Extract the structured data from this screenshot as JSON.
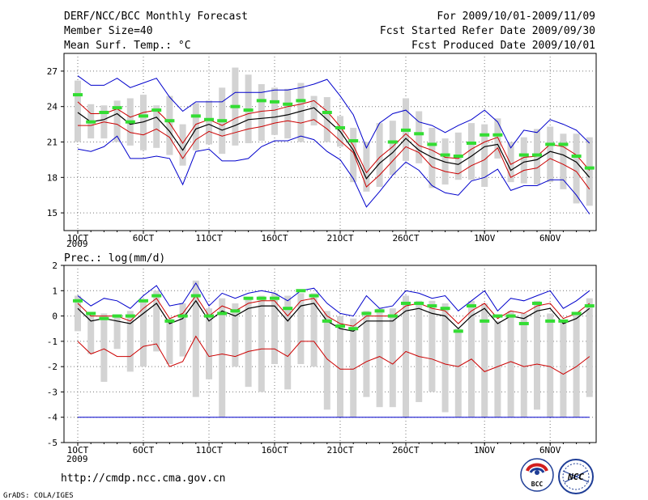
{
  "header": {
    "title": "DERF/NCC/BCC Monthly Forecast",
    "member_size": "Member Size=40",
    "variable": "Mean Surf. Temp.: °C",
    "period": "For 2009/10/01-2009/11/09",
    "fcst_started": "Fcst Started Refer Date 2009/09/30",
    "fcst_produced": "Fcst Produced Date 2009/10/01"
  },
  "precip_label": "Prec.: log(mm/d)",
  "year_label": "2009",
  "url": "http://cmdp.ncc.cma.gov.cn",
  "credit": "GrADS: COLA/IGES",
  "logos": {
    "left": "BCC",
    "right": "NCC"
  },
  "colors": {
    "mean": "#000000",
    "spread": "#cc0000",
    "envelope": "#0000cc",
    "obs": "#33dd33",
    "box": "#d3d3d3"
  },
  "chart_data": [
    {
      "type": "line",
      "title": "Mean Surf. Temp.: °C",
      "x": [
        1,
        2,
        3,
        4,
        5,
        6,
        7,
        8,
        9,
        10,
        11,
        12,
        13,
        14,
        15,
        16,
        17,
        18,
        19,
        20,
        21,
        22,
        23,
        24,
        25,
        26,
        27,
        28,
        29,
        30,
        31,
        32,
        33,
        34,
        35,
        36,
        37,
        38,
        39,
        40
      ],
      "x_ticks": [
        {
          "day": 1,
          "label": "1OCT"
        },
        {
          "day": 6,
          "label": "6OCT"
        },
        {
          "day": 11,
          "label": "11OCT"
        },
        {
          "day": 16,
          "label": "16OCT"
        },
        {
          "day": 21,
          "label": "21OCT"
        },
        {
          "day": 26,
          "label": "26OCT"
        },
        {
          "day": 32,
          "label": "1NOV"
        },
        {
          "day": 37,
          "label": "6NOV"
        }
      ],
      "ylim": [
        13.5,
        28.5
      ],
      "y_ticks": [
        15,
        18,
        21,
        24,
        27
      ],
      "series": [
        {
          "name": "max",
          "color": "#0000cc",
          "values": [
            26.6,
            25.8,
            25.8,
            26.4,
            25.6,
            26.0,
            26.4,
            24.8,
            23.6,
            24.4,
            24.4,
            24.4,
            25.2,
            25.2,
            25.2,
            25.4,
            25.4,
            25.6,
            25.9,
            26.3,
            24.9,
            23.3,
            20.5,
            22.6,
            23.4,
            23.7,
            22.7,
            22.4,
            21.8,
            22.4,
            22.9,
            23.7,
            22.7,
            20.5,
            22.0,
            21.8,
            22.9,
            22.5,
            22.0,
            20.9
          ]
        },
        {
          "name": "upper",
          "color": "#cc0000",
          "values": [
            24.4,
            23.4,
            23.4,
            23.8,
            23.1,
            23.5,
            23.7,
            22.6,
            20.9,
            22.5,
            22.9,
            22.4,
            23.0,
            23.4,
            23.6,
            23.7,
            24.0,
            24.2,
            24.5,
            23.6,
            22.3,
            20.7,
            18.4,
            19.7,
            20.6,
            21.7,
            20.7,
            20.3,
            19.7,
            19.6,
            20.4,
            21.0,
            21.4,
            19.1,
            19.7,
            19.8,
            20.8,
            20.6,
            19.9,
            18.6
          ]
        },
        {
          "name": "mean",
          "color": "#000000",
          "values": [
            23.5,
            22.7,
            22.9,
            23.4,
            22.5,
            22.7,
            23.1,
            21.9,
            20.3,
            22.1,
            22.5,
            22.0,
            22.4,
            22.9,
            23.0,
            23.1,
            23.3,
            23.6,
            23.9,
            22.9,
            21.9,
            20.3,
            17.9,
            19.2,
            20.1,
            21.3,
            20.3,
            19.7,
            19.3,
            19.1,
            19.8,
            20.6,
            20.8,
            18.6,
            19.3,
            19.5,
            20.2,
            19.9,
            19.3,
            18.0
          ]
        },
        {
          "name": "lower",
          "color": "#cc0000",
          "values": [
            22.4,
            22.4,
            22.7,
            22.5,
            21.8,
            21.6,
            22.1,
            21.4,
            19.6,
            21.2,
            21.9,
            21.5,
            21.8,
            22.1,
            22.3,
            22.6,
            22.8,
            22.6,
            22.9,
            22.1,
            21.1,
            20.1,
            17.2,
            18.2,
            19.4,
            20.6,
            20.1,
            18.9,
            18.5,
            18.3,
            19.0,
            19.5,
            20.5,
            18.0,
            18.6,
            18.8,
            19.6,
            19.1,
            18.5,
            17.0
          ]
        },
        {
          "name": "min",
          "color": "#0000cc",
          "values": [
            20.4,
            20.2,
            20.6,
            21.5,
            19.6,
            19.6,
            19.8,
            19.6,
            17.4,
            20.2,
            20.4,
            19.4,
            19.4,
            19.6,
            20.6,
            21.1,
            21.1,
            21.5,
            21.2,
            20.2,
            19.5,
            17.9,
            15.5,
            16.8,
            18.2,
            19.3,
            18.6,
            17.3,
            16.7,
            16.5,
            17.7,
            18.0,
            18.7,
            16.9,
            17.3,
            17.3,
            17.8,
            17.8,
            16.5,
            14.9
          ]
        }
      ],
      "boxes": [
        [
          21.0,
          26.2
        ],
        [
          21.3,
          24.2
        ],
        [
          21.3,
          24.1
        ],
        [
          21.0,
          24.5
        ],
        [
          20.7,
          24.7
        ],
        [
          20.3,
          25.0
        ],
        [
          20.5,
          24.1
        ],
        [
          19.9,
          24.9
        ],
        [
          19.0,
          22.5
        ],
        [
          20.3,
          24.3
        ],
        [
          20.8,
          24.5
        ],
        [
          20.0,
          25.6
        ],
        [
          20.7,
          27.3
        ],
        [
          20.9,
          26.7
        ],
        [
          21.1,
          25.9
        ],
        [
          21.6,
          25.6
        ],
        [
          21.3,
          25.5
        ],
        [
          21.0,
          26.0
        ],
        [
          22.4,
          24.9
        ],
        [
          21.0,
          24.8
        ],
        [
          20.6,
          23.2
        ],
        [
          17.6,
          22.2
        ],
        [
          16.8,
          21.0
        ],
        [
          17.2,
          22.6
        ],
        [
          18.2,
          22.8
        ],
        [
          19.4,
          24.7
        ],
        [
          19.2,
          23.6
        ],
        [
          17.1,
          22.2
        ],
        [
          17.4,
          21.3
        ],
        [
          17.8,
          21.8
        ],
        [
          17.8,
          22.6
        ],
        [
          17.2,
          22.5
        ],
        [
          19.6,
          23.0
        ],
        [
          17.6,
          21.0
        ],
        [
          17.5,
          21.4
        ],
        [
          17.4,
          22.1
        ],
        [
          17.6,
          22.3
        ],
        [
          17.0,
          21.7
        ],
        [
          15.8,
          21.7
        ],
        [
          15.6,
          21.4
        ]
      ],
      "obs": [
        25.0,
        22.7,
        23.5,
        23.9,
        22.7,
        23.2,
        23.7,
        22.8,
        null,
        23.2,
        22.9,
        22.8,
        24.0,
        23.7,
        24.5,
        24.4,
        24.2,
        24.5,
        null,
        23.5,
        22.2,
        21.1,
        null,
        null,
        21.0,
        22.0,
        21.7,
        20.8,
        19.9,
        19.8,
        20.9,
        21.6,
        21.6,
        null,
        19.9,
        19.9,
        20.8,
        20.8,
        19.8,
        18.8
      ]
    },
    {
      "type": "line",
      "title": "Prec.: log(mm/d)",
      "x": [
        1,
        2,
        3,
        4,
        5,
        6,
        7,
        8,
        9,
        10,
        11,
        12,
        13,
        14,
        15,
        16,
        17,
        18,
        19,
        20,
        21,
        22,
        23,
        24,
        25,
        26,
        27,
        28,
        29,
        30,
        31,
        32,
        33,
        34,
        35,
        36,
        37,
        38,
        39,
        40
      ],
      "x_ticks": [
        {
          "day": 1,
          "label": "1OCT"
        },
        {
          "day": 6,
          "label": "6OCT"
        },
        {
          "day": 11,
          "label": "11OCT"
        },
        {
          "day": 16,
          "label": "16OCT"
        },
        {
          "day": 21,
          "label": "21OCT"
        },
        {
          "day": 26,
          "label": "26OCT"
        },
        {
          "day": 32,
          "label": "1NOV"
        },
        {
          "day": 37,
          "label": "6NOV"
        }
      ],
      "ylim": [
        -5,
        2
      ],
      "y_ticks": [
        -5,
        -4,
        -3,
        -2,
        -1,
        0,
        1,
        2
      ],
      "reference_line": -4,
      "series": [
        {
          "name": "max",
          "color": "#0000cc",
          "values": [
            0.8,
            0.4,
            0.7,
            0.6,
            0.3,
            0.8,
            1.2,
            0.4,
            0.5,
            1.3,
            0.4,
            0.9,
            0.7,
            0.9,
            1.0,
            0.9,
            0.6,
            1.0,
            1.1,
            0.5,
            0.1,
            0.0,
            0.8,
            0.3,
            0.4,
            1.0,
            0.9,
            0.7,
            0.8,
            0.2,
            0.6,
            1.0,
            0.2,
            0.7,
            0.6,
            0.8,
            1.0,
            0.3,
            0.6,
            1.0
          ]
        },
        {
          "name": "upper",
          "color": "#cc0000",
          "values": [
            0.5,
            0.0,
            0.0,
            0.0,
            -0.2,
            0.3,
            0.7,
            -0.1,
            0.1,
            0.8,
            0.0,
            0.4,
            0.2,
            0.5,
            0.6,
            0.6,
            0.0,
            0.6,
            0.7,
            0.0,
            -0.3,
            -0.4,
            0.0,
            0.0,
            0.0,
            0.4,
            0.5,
            0.3,
            0.2,
            -0.3,
            0.2,
            0.5,
            -0.1,
            0.2,
            0.1,
            0.4,
            0.5,
            -0.1,
            0.1,
            0.5
          ]
        },
        {
          "name": "mean",
          "color": "#000000",
          "values": [
            0.3,
            -0.2,
            -0.1,
            -0.2,
            -0.3,
            0.1,
            0.5,
            -0.3,
            -0.1,
            0.6,
            -0.2,
            0.2,
            0.0,
            0.3,
            0.4,
            0.4,
            -0.2,
            0.4,
            0.5,
            -0.2,
            -0.5,
            -0.6,
            -0.2,
            -0.2,
            -0.2,
            0.2,
            0.3,
            0.1,
            0.0,
            -0.5,
            0.0,
            0.3,
            -0.3,
            0.0,
            -0.1,
            0.2,
            0.3,
            -0.3,
            -0.1,
            0.3
          ]
        },
        {
          "name": "lower",
          "color": "#cc0000",
          "values": [
            -1.0,
            -1.5,
            -1.3,
            -1.6,
            -1.6,
            -1.2,
            -1.1,
            -2.0,
            -1.8,
            -0.8,
            -1.6,
            -1.5,
            -1.6,
            -1.4,
            -1.3,
            -1.3,
            -1.6,
            -1.0,
            -1.0,
            -1.7,
            -2.1,
            -2.1,
            -1.8,
            -1.6,
            -1.9,
            -1.4,
            -1.6,
            -1.7,
            -1.9,
            -2.0,
            -1.7,
            -2.2,
            -2.0,
            -1.8,
            -2.0,
            -1.9,
            -2.0,
            -2.3,
            -2.0,
            -1.6
          ]
        },
        {
          "name": "min",
          "color": "#0000cc",
          "values": [
            -4.0,
            -4.0,
            -4.0,
            -4.0,
            -4.0,
            -4.0,
            -4.0,
            -4.0,
            -4.0,
            -4.0,
            -4.0,
            -4.0,
            -4.0,
            -4.0,
            -4.0,
            -4.0,
            -4.0,
            -4.0,
            -4.0,
            -4.0,
            -4.0,
            -4.0,
            -4.0,
            -4.0,
            -4.0,
            -4.0,
            -4.0,
            -4.0,
            -4.0,
            -4.0,
            -4.0,
            -4.0,
            -4.0,
            -4.0,
            -4.0,
            -4.0,
            -4.0,
            -4.0,
            -4.0,
            -4.0
          ]
        }
      ],
      "boxes": [
        [
          -0.6,
          0.8
        ],
        [
          -1.5,
          0.1
        ],
        [
          -2.6,
          0.1
        ],
        [
          -1.3,
          0.0
        ],
        [
          -2.2,
          0.2
        ],
        [
          -2.0,
          0.6
        ],
        [
          -1.4,
          1.0
        ],
        [
          -1.9,
          -0.1
        ],
        [
          -1.6,
          0.5
        ],
        [
          -3.2,
          1.4
        ],
        [
          -2.5,
          0.3
        ],
        [
          -4.0,
          0.7
        ],
        [
          -2.0,
          0.5
        ],
        [
          -2.8,
          0.7
        ],
        [
          -3.0,
          0.8
        ],
        [
          -1.9,
          0.9
        ],
        [
          -2.9,
          0.8
        ],
        [
          -1.9,
          0.9
        ],
        [
          -2.0,
          0.9
        ],
        [
          -3.7,
          0.2
        ],
        [
          -4.0,
          0.0
        ],
        [
          -4.0,
          -0.1
        ],
        [
          -3.2,
          0.2
        ],
        [
          -3.6,
          0.3
        ],
        [
          -3.6,
          0.3
        ],
        [
          -4.0,
          0.8
        ],
        [
          -3.4,
          0.6
        ],
        [
          -3.0,
          0.6
        ],
        [
          -3.8,
          0.5
        ],
        [
          -4.0,
          -0.5
        ],
        [
          -4.0,
          0.6
        ],
        [
          -4.0,
          0.5
        ],
        [
          -4.0,
          -0.2
        ],
        [
          -4.0,
          0.2
        ],
        [
          -4.0,
          0.1
        ],
        [
          -3.7,
          0.6
        ],
        [
          -4.0,
          0.1
        ],
        [
          -4.0,
          -0.2
        ],
        [
          -4.0,
          0.1
        ],
        [
          -3.2,
          0.7
        ]
      ],
      "obs": [
        0.6,
        0.1,
        -0.1,
        0.0,
        0.0,
        0.6,
        0.8,
        -0.2,
        0.0,
        0.8,
        0.0,
        0.1,
        0.2,
        0.7,
        0.7,
        0.7,
        0.3,
        1.0,
        0.8,
        -0.2,
        -0.4,
        -0.5,
        0.1,
        0.2,
        0.0,
        0.5,
        0.5,
        0.4,
        0.3,
        -0.6,
        0.4,
        -0.2,
        0.0,
        0.0,
        -0.3,
        0.5,
        -0.2,
        -0.2,
        0.1,
        0.4
      ]
    }
  ]
}
